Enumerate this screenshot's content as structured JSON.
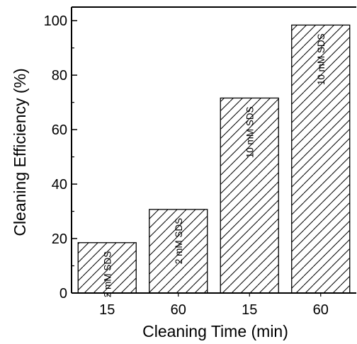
{
  "chart_data": {
    "type": "bar",
    "categories": [
      "15",
      "60",
      "15",
      "60"
    ],
    "values": [
      18.5,
      30.7,
      71.6,
      98.4
    ],
    "bar_labels": [
      "2 mM SDS",
      "2 mM SDS",
      "10 mM SDS",
      "10 mM SDS"
    ],
    "xlabel": "Cleaning Time (min)",
    "ylabel": "Cleaning Efficiency (%)",
    "ylim": [
      0,
      105
    ],
    "yticks": [
      0,
      20,
      40,
      60,
      80,
      100
    ],
    "bar_fill": "hatched",
    "bar_color": "#000000",
    "grid": false
  }
}
